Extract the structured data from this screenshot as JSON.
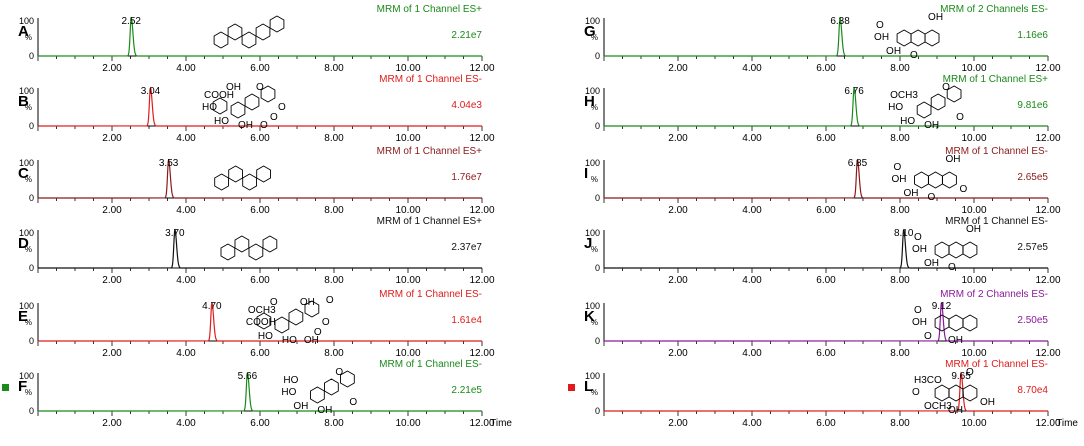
{
  "colors": {
    "green": "#1a8a1a",
    "red": "#e01b1b",
    "darkred": "#8b1a1a",
    "black": "#111111",
    "purple": "#8a1a9a"
  },
  "chart_data": [
    {
      "id": "A",
      "type": "line",
      "channel": "MRM of 1 Channel ES+",
      "intensity": "2.21e7",
      "peak_rt": "2.52",
      "color": "green",
      "xlim": [
        0,
        12
      ],
      "ylim": [
        0,
        100
      ],
      "ylabel_top": "100",
      "ylabel_pct": "%",
      "ylabel_bottom": "0",
      "xticks": [
        "2.00",
        "4.00",
        "6.00",
        "8.00",
        "10.00",
        "12.00"
      ],
      "xaxis_title": "",
      "x": [
        2.52
      ],
      "y": [
        100
      ],
      "marker": "",
      "structure": "berberine"
    },
    {
      "id": "B",
      "type": "line",
      "channel": "MRM of 1 Channel ES-",
      "intensity": "4.04e3",
      "peak_rt": "3.04",
      "color": "red",
      "xlim": [
        0,
        12
      ],
      "ylim": [
        0,
        100
      ],
      "ylabel_top": "100",
      "ylabel_pct": "%",
      "ylabel_bottom": "0",
      "xticks": [
        "2.00",
        "4.00",
        "6.00",
        "8.00",
        "10.00",
        "12.00"
      ],
      "xaxis_title": "",
      "x": [
        3.04
      ],
      "y": [
        100
      ],
      "marker": "",
      "structure": "flavone-glucuronide",
      "structure_labels": [
        "COOH",
        "HO",
        "HO",
        "OH",
        "O",
        "O",
        "O",
        "OH",
        "O"
      ]
    },
    {
      "id": "C",
      "type": "line",
      "channel": "MRM of 1 Channel ES+",
      "intensity": "1.76e7",
      "peak_rt": "3.53",
      "color": "darkred",
      "xlim": [
        0,
        12
      ],
      "ylim": [
        0,
        100
      ],
      "ylabel_top": "100",
      "ylabel_pct": "%",
      "ylabel_bottom": "0",
      "xticks": [
        "2.00",
        "4.00",
        "6.00",
        "8.00",
        "10.00",
        "12.00"
      ],
      "xaxis_title": "",
      "x": [
        3.53
      ],
      "y": [
        100
      ],
      "marker": "",
      "structure": "palmatine"
    },
    {
      "id": "D",
      "type": "line",
      "channel": "MRM of 1 Channel ES+",
      "intensity": "2.37e7",
      "peak_rt": "3.70",
      "color": "black",
      "xlim": [
        0,
        12
      ],
      "ylim": [
        0,
        100
      ],
      "ylabel_top": "100",
      "ylabel_pct": "%",
      "ylabel_bottom": "0",
      "xticks": [
        "2.00",
        "4.00",
        "6.00",
        "8.00",
        "10.00",
        "12.00"
      ],
      "xaxis_title": "",
      "x": [
        3.7
      ],
      "y": [
        100
      ],
      "marker": "",
      "structure": "jatrorrhizine"
    },
    {
      "id": "E",
      "type": "line",
      "channel": "MRM of 1 Channel ES-",
      "intensity": "1.61e4",
      "peak_rt": "4.70",
      "color": "red",
      "xlim": [
        0,
        12
      ],
      "ylim": [
        0,
        100
      ],
      "ylabel_top": "100",
      "ylabel_pct": "%",
      "ylabel_bottom": "0",
      "xticks": [
        "2.00",
        "4.00",
        "6.00",
        "8.00",
        "10.00",
        "12.00"
      ],
      "xaxis_title": "",
      "x": [
        4.7
      ],
      "y": [
        100
      ],
      "marker": "",
      "structure": "methoxyflavone-glucuronide",
      "structure_labels": [
        "OCH3",
        "COOH",
        "HO",
        "HO",
        "OH",
        "O",
        "O",
        "O",
        "OH",
        "O"
      ]
    },
    {
      "id": "F",
      "type": "line",
      "channel": "MRM of 1 Channel ES-",
      "intensity": "2.21e5",
      "peak_rt": "5.66",
      "color": "green",
      "xlim": [
        0,
        12
      ],
      "ylim": [
        0,
        100
      ],
      "ylabel_top": "100",
      "ylabel_pct": "%",
      "ylabel_bottom": "0",
      "xticks": [
        "2.00",
        "4.00",
        "6.00",
        "8.00",
        "10.00",
        "12.00"
      ],
      "xaxis_title": "Time",
      "x": [
        5.66
      ],
      "y": [
        100
      ],
      "marker": "green",
      "structure": "baicalein",
      "structure_labels": [
        "HO",
        "HO",
        "OH",
        "OH",
        "O",
        "O"
      ]
    },
    {
      "id": "G",
      "type": "line",
      "channel": "MRM of 2 Channels ES-",
      "intensity": "1.16e6",
      "peak_rt": "6.38",
      "color": "green",
      "xlim": [
        0,
        12
      ],
      "ylim": [
        0,
        100
      ],
      "ylabel_top": "100",
      "ylabel_pct": "%",
      "ylabel_bottom": "0",
      "xticks": [
        "2.00",
        "4.00",
        "6.00",
        "8.00",
        "10.00",
        "12.00"
      ],
      "xaxis_title": "",
      "x": [
        6.38
      ],
      "y": [
        100
      ],
      "marker": "",
      "structure": "aloe-emodin",
      "structure_labels": [
        "O",
        "OH",
        "OH",
        "O",
        "OH"
      ]
    },
    {
      "id": "H",
      "type": "line",
      "channel": "MRM of 1 Channel ES+",
      "intensity": "9.81e6",
      "peak_rt": "6.76",
      "color": "green",
      "xlim": [
        0,
        12
      ],
      "ylim": [
        0,
        100
      ],
      "ylabel_top": "100",
      "ylabel_pct": "%",
      "ylabel_bottom": "0",
      "xticks": [
        "2.00",
        "4.00",
        "6.00",
        "8.00",
        "10.00",
        "12.00"
      ],
      "xaxis_title": "",
      "x": [
        6.76
      ],
      "y": [
        100
      ],
      "marker": "",
      "structure": "wogonin",
      "structure_labels": [
        "OCH3",
        "HO",
        "HO",
        "OH",
        "O",
        "O"
      ]
    },
    {
      "id": "I",
      "type": "line",
      "channel": "MRM of 1 Channel ES-",
      "intensity": "2.65e5",
      "peak_rt": "6.85",
      "color": "darkred",
      "xlim": [
        0,
        12
      ],
      "ylim": [
        0,
        100
      ],
      "ylabel_top": "100",
      "ylabel_pct": "%",
      "ylabel_bottom": "0",
      "xticks": [
        "2.00",
        "4.00",
        "6.00",
        "8.00",
        "10.00",
        "12.00"
      ],
      "xaxis_title": "",
      "x": [
        6.85
      ],
      "y": [
        100
      ],
      "marker": "",
      "structure": "rhein",
      "structure_labels": [
        "O",
        "OH",
        "OH",
        "O",
        "OH",
        "O"
      ]
    },
    {
      "id": "J",
      "type": "line",
      "channel": "MRM of 1 Channel ES-",
      "intensity": "2.57e5",
      "peak_rt": "8.10",
      "color": "black",
      "xlim": [
        0,
        12
      ],
      "ylim": [
        0,
        100
      ],
      "ylabel_top": "100",
      "ylabel_pct": "%",
      "ylabel_bottom": "0",
      "xticks": [
        "2.00",
        "4.00",
        "6.00",
        "8.00",
        "10.00",
        "12.00"
      ],
      "xaxis_title": "",
      "x": [
        8.1
      ],
      "y": [
        100
      ],
      "marker": "",
      "structure": "emodin",
      "structure_labels": [
        "O",
        "OH",
        "OH",
        "O",
        "OH"
      ]
    },
    {
      "id": "K",
      "type": "line",
      "channel": "MRM of 2 Channels ES-",
      "intensity": "2.50e5",
      "peak_rt": "9.12",
      "color": "purple",
      "xlim": [
        0,
        12
      ],
      "ylim": [
        0,
        100
      ],
      "ylabel_top": "100",
      "ylabel_pct": "%",
      "ylabel_bottom": "0",
      "xticks": [
        "2.00",
        "4.00",
        "6.00",
        "8.00",
        "10.00",
        "12.00"
      ],
      "xaxis_title": "",
      "x": [
        9.12
      ],
      "y": [
        100
      ],
      "marker": "",
      "structure": "chrysophanol",
      "structure_labels": [
        "O",
        "OH",
        "O",
        "OH"
      ]
    },
    {
      "id": "L",
      "type": "line",
      "channel": "MRM of 1 Channel ES-",
      "intensity": "8.70e4",
      "peak_rt": "9.65",
      "color": "red",
      "xlim": [
        0,
        12
      ],
      "ylim": [
        0,
        100
      ],
      "ylabel_top": "100",
      "ylabel_pct": "%",
      "ylabel_bottom": "0",
      "xticks": [
        "2.00",
        "4.00",
        "6.00",
        "8.00",
        "10.00",
        "12.00"
      ],
      "xaxis_title": "Time",
      "x": [
        9.65
      ],
      "y": [
        100
      ],
      "marker": "red",
      "structure": "physcion",
      "structure_labels": [
        "H3CO",
        "O",
        "OCH3",
        "OH",
        "O",
        "OH"
      ]
    }
  ]
}
